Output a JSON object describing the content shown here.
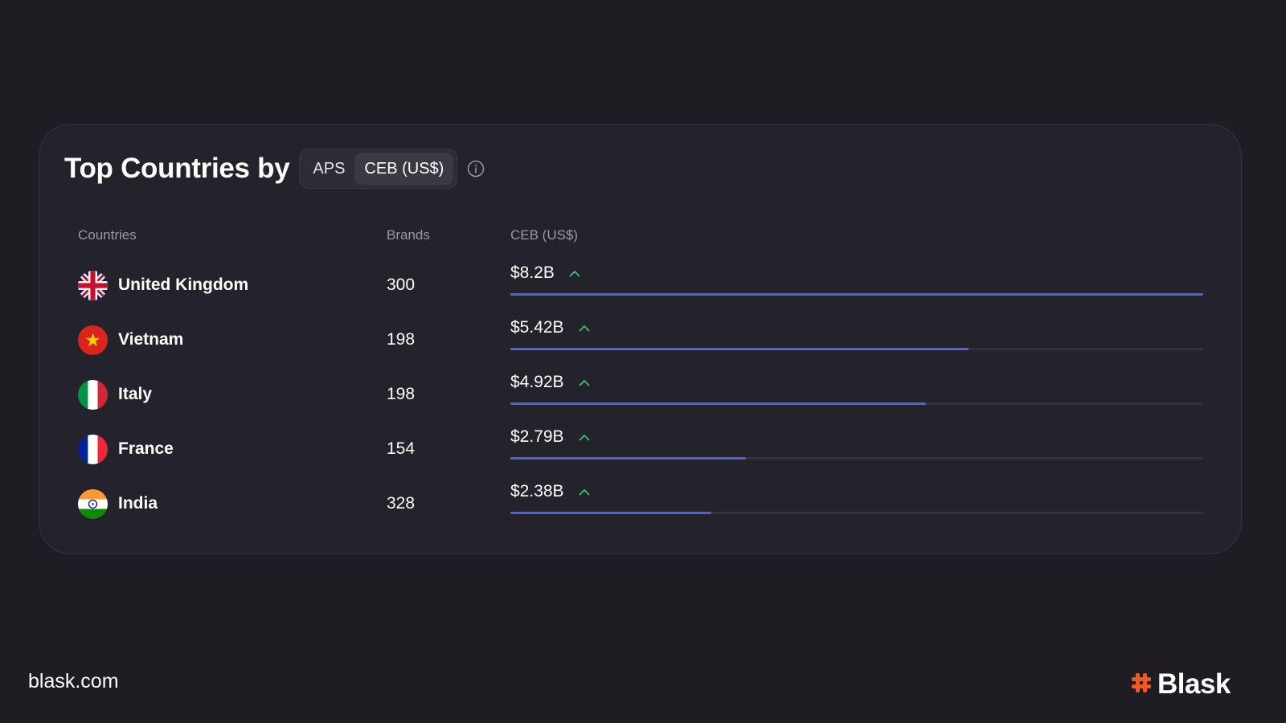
{
  "header": {
    "title": "Top Countries by",
    "toggle_options": [
      "APS",
      "CEB (US$)"
    ],
    "active_toggle": "CEB (US$)",
    "info_icon": "info-icon"
  },
  "columns": [
    "Countries",
    "Brands",
    "CEB (US$)"
  ],
  "rows": [
    {
      "country": "United Kingdom",
      "flag": "uk-flag-icon",
      "brands": "300",
      "ceb": "$8.2B",
      "trend": "up",
      "fill": 1.0
    },
    {
      "country": "Vietnam",
      "flag": "vietnam-flag-icon",
      "brands": "198",
      "ceb": "$5.42B",
      "trend": "up",
      "fill": 0.661
    },
    {
      "country": "Italy",
      "flag": "italy-flag-icon",
      "brands": "198",
      "ceb": "$4.92B",
      "trend": "up",
      "fill": 0.6
    },
    {
      "country": "France",
      "flag": "france-flag-icon",
      "brands": "154",
      "ceb": "$2.79B",
      "trend": "up",
      "fill": 0.34
    },
    {
      "country": "India",
      "flag": "india-flag-icon",
      "brands": "328",
      "ceb": "$2.38B",
      "trend": "up",
      "fill": 0.29
    }
  ],
  "footer": {
    "url": "blask.com",
    "logo_text": "Blask"
  },
  "colors": {
    "bar": "#4f63d9",
    "trend_up": "#3ec46d",
    "logo_hash": "#ee5a24",
    "background": "#1f1d23",
    "card": "#24232b"
  }
}
